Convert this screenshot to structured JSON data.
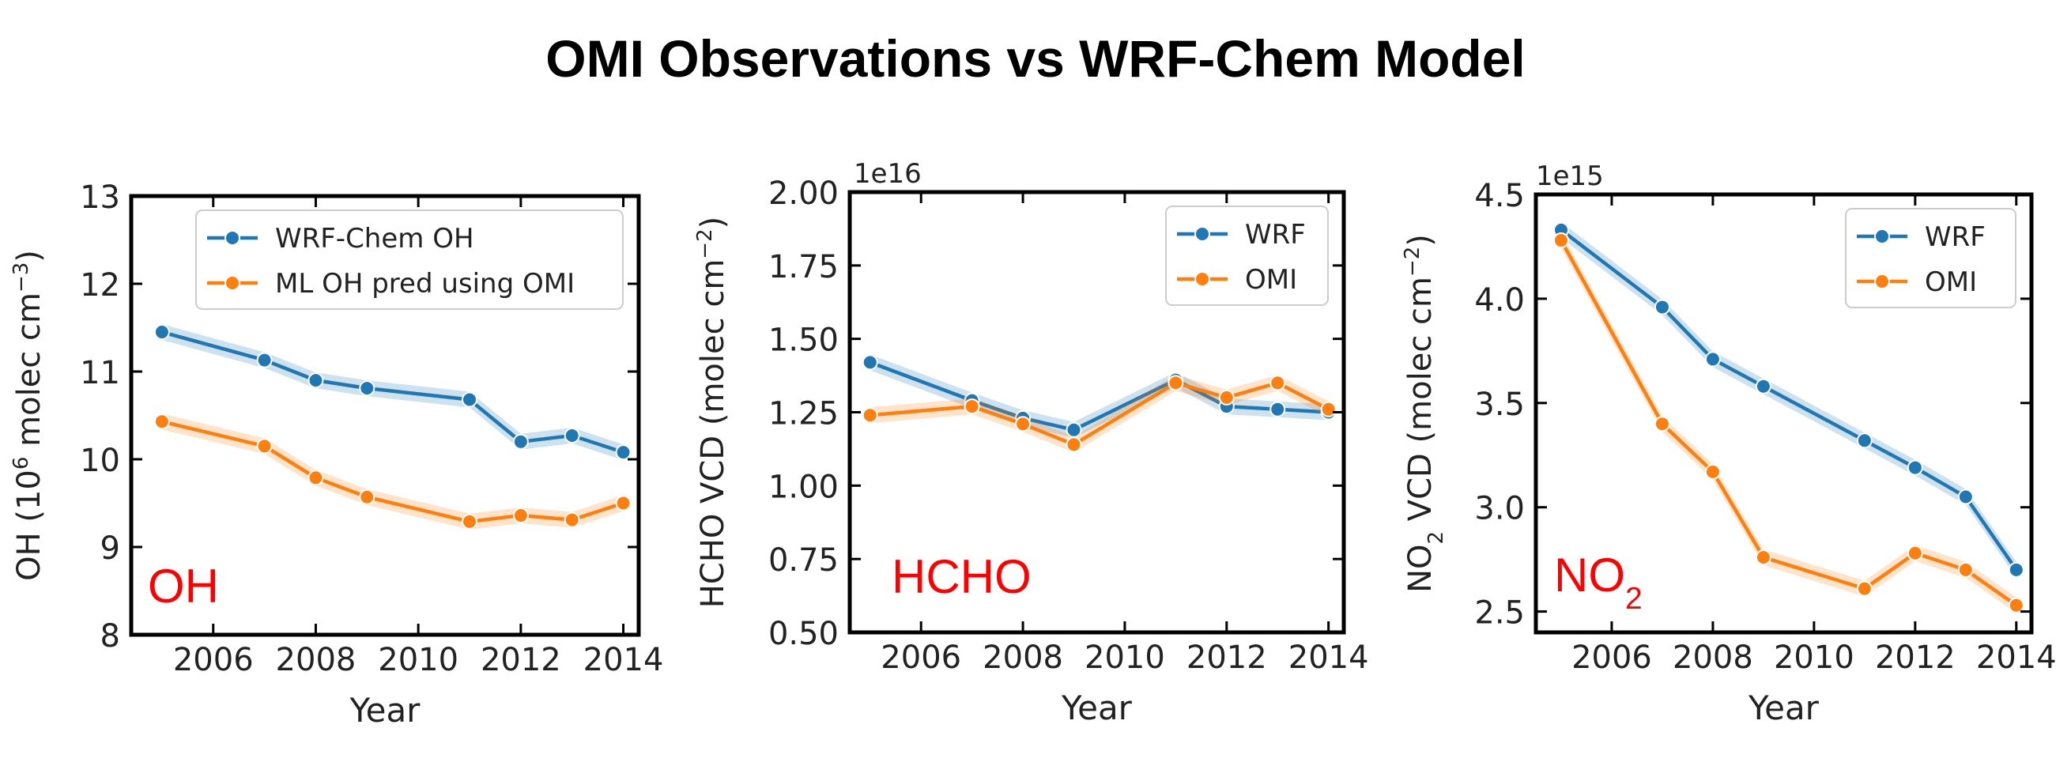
{
  "title": "OMI Observations vs WRF-Chem Model",
  "colors": {
    "blue": "#1f77b4",
    "orange": "#ff7f0e",
    "red": "#ff0000"
  },
  "chart_data": [
    {
      "type": "line",
      "xlabel": "Year",
      "ylabel": "OH (10⁶ molec cm⁻³)",
      "ylabel_parts": [
        "OH (10",
        "6",
        " molec cm",
        "−3",
        ")"
      ],
      "ylim": [
        8,
        13
      ],
      "yticks": [
        8,
        9,
        10,
        11,
        12,
        13
      ],
      "ytick_labels": [
        "8",
        "9",
        "10",
        "11",
        "12",
        "13"
      ],
      "xlim": [
        2004.4,
        2014.3
      ],
      "xticks": [
        2006,
        2008,
        2010,
        2012,
        2014
      ],
      "xtick_labels": [
        "2006",
        "2008",
        "2010",
        "2012",
        "2014"
      ],
      "legend_position": "top-right",
      "annotation": "OH",
      "annotation_parts": [
        "OH"
      ],
      "series": [
        {
          "name": "WRF-Chem OH",
          "color": "blue",
          "x": [
            2005,
            2007,
            2008,
            2009,
            2011,
            2012,
            2013,
            2014
          ],
          "values": [
            11.45,
            11.13,
            10.9,
            10.81,
            10.68,
            10.2,
            10.27,
            10.08
          ]
        },
        {
          "name": "ML OH pred using OMI",
          "color": "orange",
          "x": [
            2005,
            2007,
            2008,
            2009,
            2011,
            2012,
            2013,
            2014
          ],
          "values": [
            10.43,
            10.15,
            9.79,
            9.57,
            9.29,
            9.36,
            9.31,
            9.5
          ]
        }
      ]
    },
    {
      "type": "line",
      "xlabel": "Year",
      "ylabel": "HCHO  VCD (molec cm⁻²)",
      "ylabel_parts": [
        "HCHO  VCD (molec cm",
        "−2",
        ")"
      ],
      "scale_label": "1e16",
      "ylim": [
        0.5,
        2.0
      ],
      "yticks": [
        0.5,
        0.75,
        1.0,
        1.25,
        1.5,
        1.75,
        2.0
      ],
      "ytick_labels": [
        "0.50",
        "0.75",
        "1.00",
        "1.25",
        "1.50",
        "1.75",
        "2.00"
      ],
      "xlim": [
        2004.6,
        2014.3
      ],
      "xticks": [
        2006,
        2008,
        2010,
        2012,
        2014
      ],
      "xtick_labels": [
        "2006",
        "2008",
        "2010",
        "2012",
        "2014"
      ],
      "legend_position": "top-right",
      "annotation": "HCHO",
      "annotation_parts": [
        "HCHO"
      ],
      "series": [
        {
          "name": "WRF",
          "color": "blue",
          "x": [
            2005,
            2007,
            2008,
            2009,
            2011,
            2012,
            2013,
            2014
          ],
          "values": [
            1.42,
            1.29,
            1.23,
            1.19,
            1.36,
            1.27,
            1.26,
            1.25
          ]
        },
        {
          "name": "OMI",
          "color": "orange",
          "x": [
            2005,
            2007,
            2008,
            2009,
            2011,
            2012,
            2013,
            2014
          ],
          "values": [
            1.24,
            1.27,
            1.21,
            1.14,
            1.35,
            1.3,
            1.35,
            1.26
          ]
        }
      ]
    },
    {
      "type": "line",
      "xlabel": "Year",
      "ylabel": "NO₂ VCD (molec cm⁻²)",
      "ylabel_parts": [
        "NO",
        "2",
        " VCD (molec cm",
        "−2",
        ")"
      ],
      "scale_label": "1e15",
      "ylim": [
        2.4,
        4.5
      ],
      "yticks": [
        2.5,
        3.0,
        3.5,
        4.0,
        4.5
      ],
      "ytick_labels": [
        "2.5",
        "3.0",
        "3.5",
        "4.0",
        "4.5"
      ],
      "xlim": [
        2004.5,
        2014.3
      ],
      "xticks": [
        2006,
        2008,
        2010,
        2012,
        2014
      ],
      "xtick_labels": [
        "2006",
        "2008",
        "2010",
        "2012",
        "2014"
      ],
      "legend_position": "top-right",
      "annotation": "NO₂",
      "annotation_parts": [
        "NO",
        "2"
      ],
      "series": [
        {
          "name": "WRF",
          "color": "blue",
          "x": [
            2005,
            2007,
            2008,
            2009,
            2011,
            2012,
            2013,
            2014
          ],
          "values": [
            4.33,
            3.96,
            3.71,
            3.58,
            3.32,
            3.19,
            3.05,
            2.7
          ]
        },
        {
          "name": "OMI",
          "color": "orange",
          "x": [
            2005,
            2007,
            2008,
            2009,
            2011,
            2012,
            2013,
            2014
          ],
          "values": [
            4.28,
            3.4,
            3.17,
            2.76,
            2.61,
            2.78,
            2.7,
            2.53
          ]
        }
      ]
    }
  ]
}
